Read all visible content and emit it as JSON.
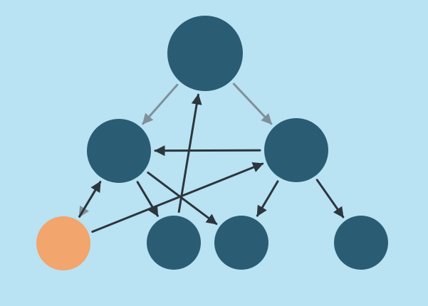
{
  "colors": {
    "background": "#b9e2f3",
    "node": "#2a5d74",
    "highlight_node": "#f2a56c",
    "edge_primary": "#2b363d",
    "edge_secondary": "#7f9099"
  },
  "nodes": [
    {
      "id": "root",
      "role": "root node",
      "highlighted": false
    },
    {
      "id": "mid-left",
      "role": "intermediate node",
      "highlighted": false
    },
    {
      "id": "mid-right",
      "role": "intermediate node",
      "highlighted": false
    },
    {
      "id": "leaf-1",
      "role": "leaf node",
      "highlighted": true
    },
    {
      "id": "leaf-2",
      "role": "leaf node",
      "highlighted": false
    },
    {
      "id": "leaf-3",
      "role": "leaf node",
      "highlighted": false
    },
    {
      "id": "leaf-4",
      "role": "leaf node",
      "highlighted": false
    }
  ],
  "edges": [
    {
      "from": "root",
      "to": "mid-left",
      "style": "secondary"
    },
    {
      "from": "root",
      "to": "mid-right",
      "style": "secondary"
    },
    {
      "from": "mid-left",
      "to": "leaf-1",
      "style": "secondary"
    },
    {
      "from": "leaf-1",
      "to": "mid-left",
      "style": "primary"
    },
    {
      "from": "leaf-1",
      "to": "mid-right",
      "style": "primary"
    },
    {
      "from": "mid-right",
      "to": "mid-left",
      "style": "primary"
    },
    {
      "from": "leaf-2",
      "to": "root",
      "style": "primary"
    },
    {
      "from": "mid-left",
      "to": "leaf-2",
      "style": "primary"
    },
    {
      "from": "mid-left",
      "to": "leaf-3",
      "style": "primary"
    },
    {
      "from": "mid-right",
      "to": "leaf-3",
      "style": "primary"
    },
    {
      "from": "mid-right",
      "to": "leaf-4",
      "style": "primary"
    }
  ]
}
